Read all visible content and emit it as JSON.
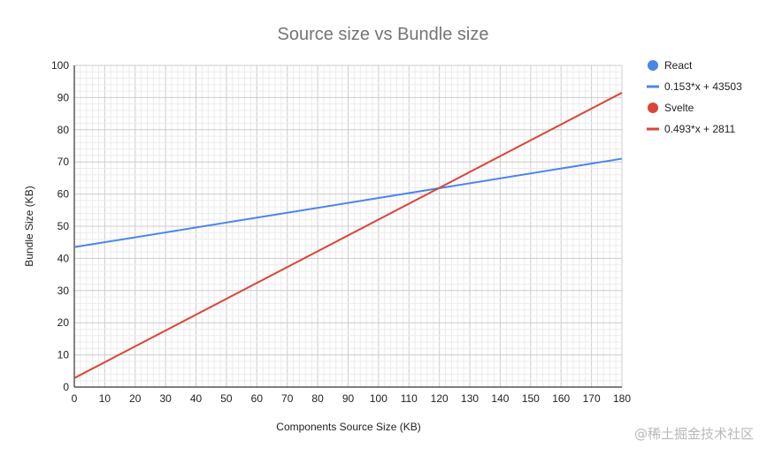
{
  "chart_data": {
    "type": "line",
    "title": "Source size vs Bundle size",
    "xlabel": "Components Source Size (KB)",
    "ylabel": "Bundle Size (KB)",
    "xlim": [
      0,
      180
    ],
    "ylim": [
      0,
      100
    ],
    "x_ticks": [
      0,
      10,
      20,
      30,
      40,
      50,
      60,
      70,
      80,
      90,
      100,
      110,
      120,
      130,
      140,
      150,
      160,
      170,
      180
    ],
    "y_ticks": [
      0,
      10,
      20,
      30,
      40,
      50,
      60,
      70,
      80,
      90,
      100
    ],
    "grid": true,
    "legend_position": "right",
    "series": [
      {
        "name": "React",
        "trendline_label": "0.153*x + 43503",
        "color": "#4a86e8",
        "x": [
          0,
          180
        ],
        "y": [
          43.5,
          71.0
        ]
      },
      {
        "name": "Svelte",
        "trendline_label": "0.493*x + 2811",
        "color": "#db4437",
        "x": [
          0,
          180
        ],
        "y": [
          2.8,
          91.5
        ]
      }
    ]
  },
  "watermark": "@稀土掘金技术社区"
}
